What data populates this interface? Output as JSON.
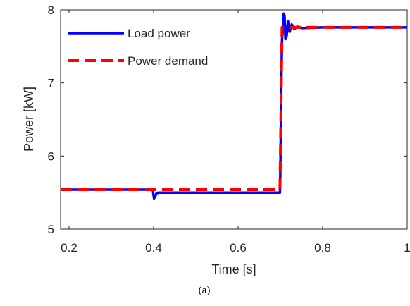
{
  "chart_data": {
    "type": "line",
    "xlabel": "Time [s]",
    "ylabel": "Power [kW]",
    "caption": "(a)",
    "xlim": [
      0.18,
      1.0
    ],
    "ylim": [
      5,
      8
    ],
    "xticks": [
      0.2,
      0.4,
      0.6,
      0.8,
      1
    ],
    "xtick_labels": [
      "0.2",
      "0.4",
      "0.6",
      "0.8",
      "1"
    ],
    "yticks": [
      5,
      6,
      7,
      8
    ],
    "ytick_labels": [
      "5",
      "6",
      "7",
      "8"
    ],
    "grid": false,
    "legend_position": "top-left",
    "series": [
      {
        "name": "Load power",
        "color": "#0000ff",
        "style": "solid",
        "x": [
          0.18,
          0.398,
          0.401,
          0.404,
          0.407,
          0.412,
          0.42,
          0.6,
          0.699,
          0.7,
          0.702,
          0.704,
          0.706,
          0.708,
          0.71,
          0.712,
          0.715,
          0.718,
          0.722,
          0.727,
          0.733,
          0.74,
          0.75,
          0.8,
          1.0
        ],
        "y": [
          5.54,
          5.54,
          5.42,
          5.45,
          5.49,
          5.5,
          5.5,
          5.5,
          5.5,
          5.8,
          6.9,
          7.6,
          7.72,
          7.95,
          7.92,
          7.6,
          7.65,
          7.85,
          7.7,
          7.8,
          7.74,
          7.77,
          7.75,
          7.76,
          7.76
        ]
      },
      {
        "name": "Power demand",
        "color": "#ff0000",
        "style": "dashed",
        "x": [
          0.18,
          0.699,
          0.704,
          1.0
        ],
        "y": [
          5.54,
          5.54,
          7.76,
          7.76
        ]
      }
    ]
  }
}
